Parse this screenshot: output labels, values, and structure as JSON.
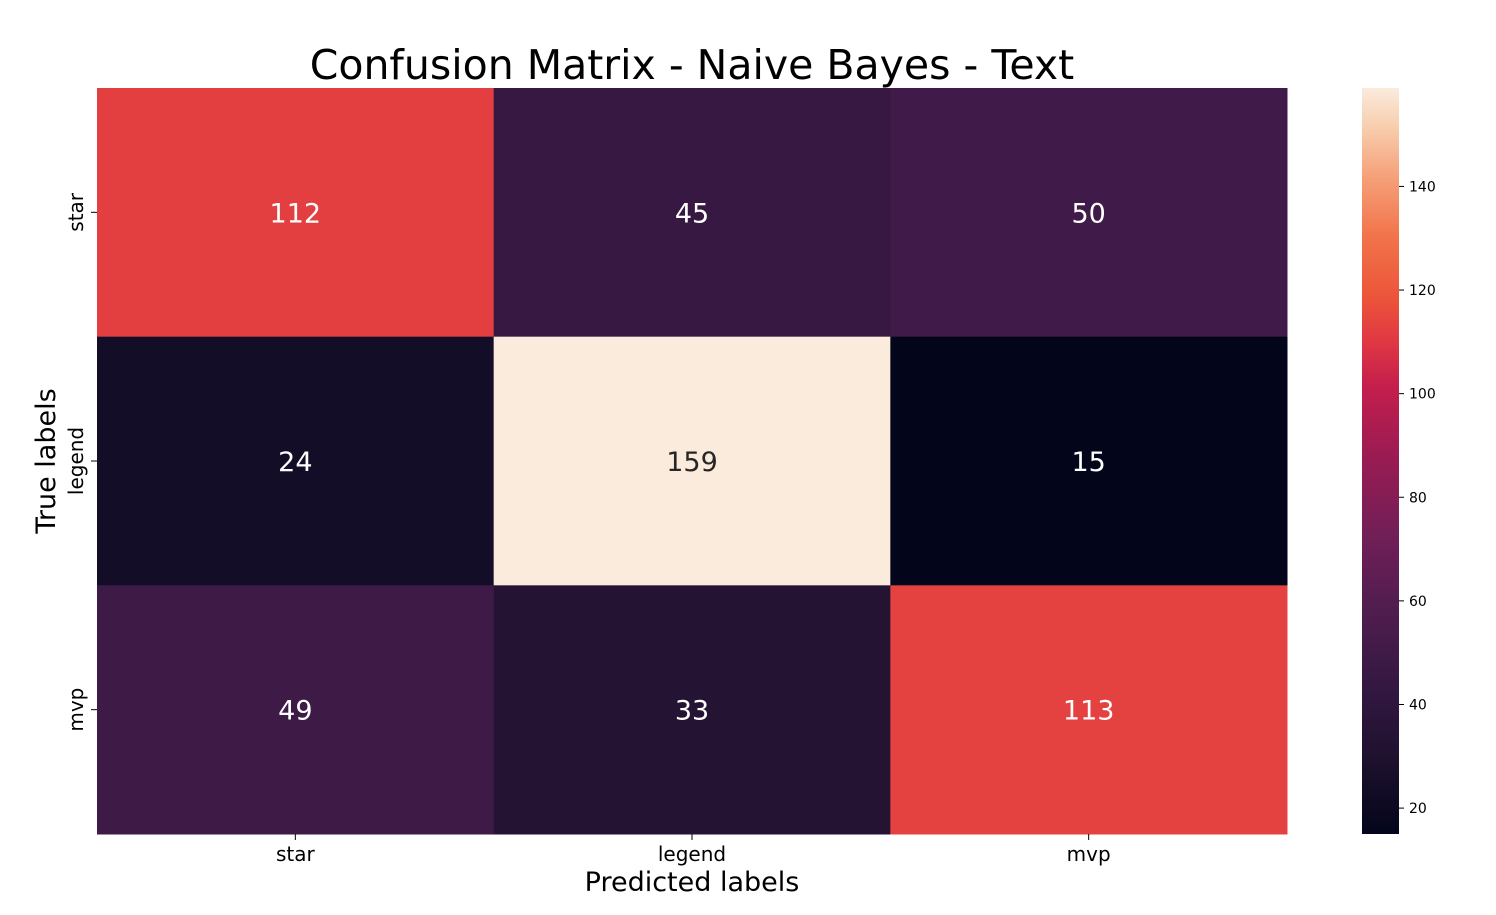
{
  "chart_data": {
    "type": "heatmap",
    "title": "Confusion Matrix - Naive Bayes - Text",
    "xlabel": "Predicted labels",
    "ylabel": "True labels",
    "x_categories": [
      "star",
      "legend",
      "mvp"
    ],
    "y_categories": [
      "star",
      "legend",
      "mvp"
    ],
    "values": [
      [
        112,
        45,
        50
      ],
      [
        24,
        159,
        15
      ],
      [
        49,
        33,
        113
      ]
    ],
    "colormap": "rocket",
    "colorbar": {
      "range": [
        15,
        159
      ],
      "ticks": [
        20,
        40,
        60,
        80,
        100,
        120,
        140
      ]
    }
  }
}
